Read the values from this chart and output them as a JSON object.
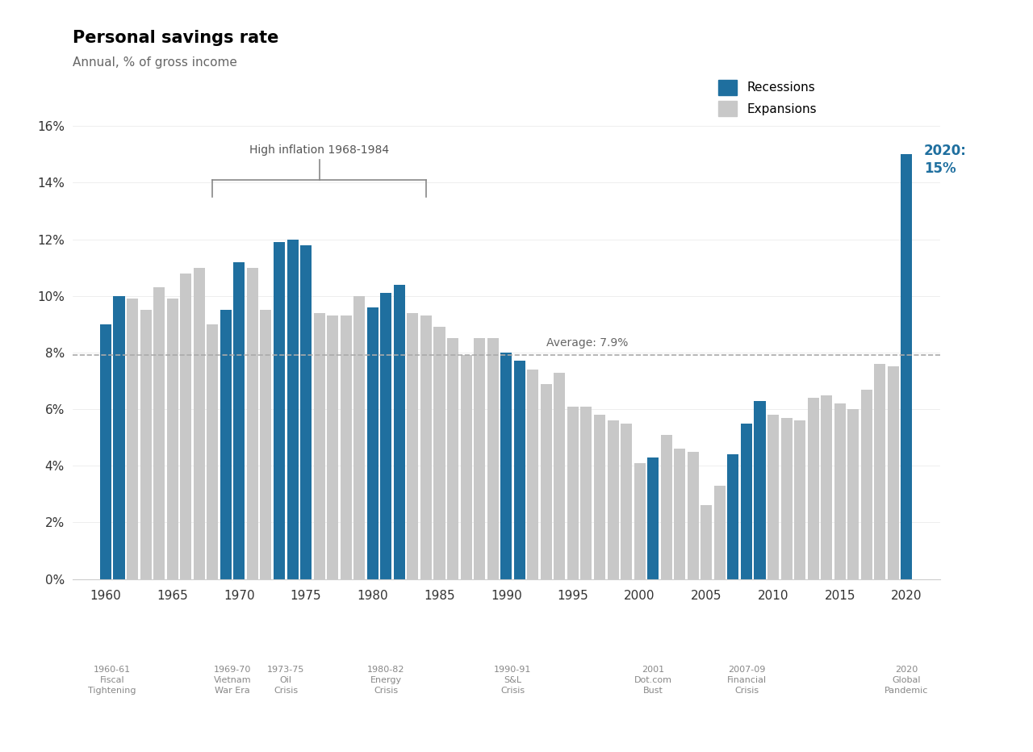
{
  "title": "Personal savings rate",
  "subtitle": "Annual, % of gross income",
  "average": 7.9,
  "average_label": "Average: 7.9%",
  "recession_color": "#1f6f9f",
  "expansion_color": "#c8c8c8",
  "annotation_2020_color": "#1f6f9f",
  "years": [
    1960,
    1961,
    1962,
    1963,
    1964,
    1965,
    1966,
    1967,
    1968,
    1969,
    1970,
    1971,
    1972,
    1973,
    1974,
    1975,
    1976,
    1977,
    1978,
    1979,
    1980,
    1981,
    1982,
    1983,
    1984,
    1985,
    1986,
    1987,
    1988,
    1989,
    1990,
    1991,
    1992,
    1993,
    1994,
    1995,
    1996,
    1997,
    1998,
    1999,
    2000,
    2001,
    2002,
    2003,
    2004,
    2005,
    2006,
    2007,
    2008,
    2009,
    2010,
    2011,
    2012,
    2013,
    2014,
    2015,
    2016,
    2017,
    2018,
    2019,
    2020
  ],
  "values": [
    9.0,
    10.0,
    9.9,
    9.5,
    10.3,
    9.9,
    10.8,
    11.0,
    9.0,
    9.5,
    11.2,
    11.0,
    9.5,
    11.9,
    12.0,
    11.8,
    9.4,
    9.3,
    9.3,
    10.0,
    9.6,
    10.1,
    10.4,
    9.4,
    9.3,
    8.9,
    8.5,
    7.9,
    8.5,
    8.5,
    8.0,
    7.7,
    7.4,
    6.9,
    7.3,
    6.1,
    6.1,
    5.8,
    5.6,
    5.5,
    4.1,
    4.3,
    5.1,
    4.6,
    4.5,
    2.6,
    3.3,
    4.4,
    5.5,
    6.3,
    5.8,
    5.7,
    5.6,
    6.4,
    6.5,
    6.2,
    6.0,
    6.7,
    7.6,
    7.5,
    15.0
  ],
  "recession_years": [
    1960,
    1961,
    1969,
    1970,
    1973,
    1974,
    1975,
    1980,
    1981,
    1982,
    1990,
    1991,
    2001,
    2007,
    2008,
    2009,
    2020
  ],
  "xtick_years": [
    1960,
    1965,
    1970,
    1975,
    1980,
    1985,
    1990,
    1995,
    2000,
    2005,
    2010,
    2015,
    2020
  ],
  "recession_labels": [
    {
      "x": 1960.5,
      "label": "1960-61\nFiscal\nTightening"
    },
    {
      "x": 1969.5,
      "label": "1969-70\nVietnam\nWar Era"
    },
    {
      "x": 1973.5,
      "label": "1973-75\nOil\nCrisis"
    },
    {
      "x": 1981.0,
      "label": "1980-82\nEnergy\nCrisis"
    },
    {
      "x": 1990.5,
      "label": "1990-91\nS&L\nCrisis"
    },
    {
      "x": 2001.0,
      "label": "2001\nDot.com\nBust"
    },
    {
      "x": 2008.0,
      "label": "2007-09\nFinancial\nCrisis"
    },
    {
      "x": 2020.0,
      "label": "2020\nGlobal\nPandemic"
    }
  ],
  "inflation_bracket_start": 1968,
  "inflation_bracket_end": 1984,
  "inflation_bracket_label": "High inflation 1968-1984",
  "ylim": [
    0,
    17
  ],
  "yticks": [
    0,
    2,
    4,
    6,
    8,
    10,
    12,
    14,
    16
  ],
  "ytick_labels": [
    "0%",
    "2%",
    "4%",
    "6%",
    "8%",
    "10%",
    "12%",
    "14%",
    "16%"
  ]
}
